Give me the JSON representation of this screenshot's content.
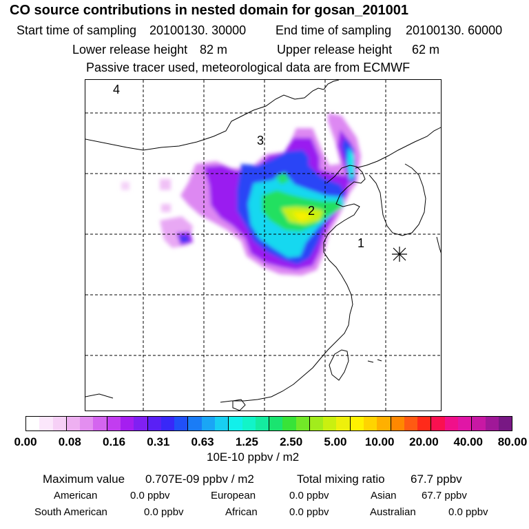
{
  "header": {
    "title": "CO  source contributions in nested domain for gosan_201001",
    "start_label": "Start time of sampling",
    "start_value": "20100130. 30000",
    "end_label": "End time of sampling",
    "end_value": "20100130. 60000",
    "lower_label": "Lower release height",
    "lower_value": "82 m",
    "upper_label": "Upper release height",
    "upper_value": "62 m",
    "note": "Passive tracer used, meteorological data are from ECMWF"
  },
  "map": {
    "region_labels": [
      "1",
      "2",
      "3",
      "4"
    ],
    "receptor_symbol": "gosan-receptor"
  },
  "colorbar": {
    "ticks": [
      "0.00",
      "0.08",
      "0.16",
      "0.31",
      "0.63",
      "1.25",
      "2.50",
      "5.00",
      "10.00",
      "20.00",
      "40.00",
      "80.00"
    ],
    "unit": "10E-10 ppbv / m2",
    "colors": [
      "#ffffff",
      "#fbe7fb",
      "#f6d0f6",
      "#eeb0f1",
      "#e38ef0",
      "#d465ef",
      "#c23df0",
      "#a51ef0",
      "#8020f2",
      "#5a20f5",
      "#3828f8",
      "#2050f8",
      "#1a7cf6",
      "#1aa6f5",
      "#18cff2",
      "#12f0ea",
      "#12f4c8",
      "#14eca0",
      "#1ae470",
      "#38e338",
      "#72e828",
      "#a2ec1c",
      "#caf010",
      "#eef00c",
      "#fff200",
      "#ffd400",
      "#ffb000",
      "#ff8800",
      "#ff5a12",
      "#ff2a1a",
      "#fa1050",
      "#f0108a",
      "#e016a6",
      "#c818a4",
      "#a01898",
      "#781884"
    ]
  },
  "stats": {
    "max_label": "Maximum value",
    "max_value": "0.707E-09 ppbv / m2",
    "total_label": "Total mixing ratio",
    "total_value": "67.7 ppbv",
    "american_label": "American",
    "american_value": "0.0 ppbv",
    "european_label": "European",
    "european_value": "0.0 ppbv",
    "asian_label": "Asian",
    "asian_value": "67.7 ppbv",
    "south_american_label": "South American",
    "south_american_value": "0.0 ppbv",
    "african_label": "African",
    "african_value": "0.0 ppbv",
    "australian_label": "Australian",
    "australian_value": "0.0 ppbv"
  }
}
